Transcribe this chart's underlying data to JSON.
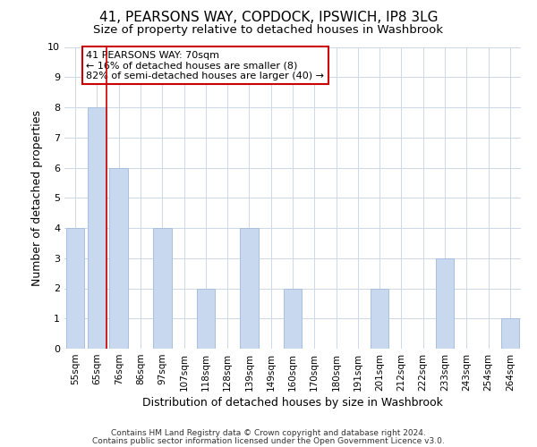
{
  "title": "41, PEARSONS WAY, COPDOCK, IPSWICH, IP8 3LG",
  "subtitle": "Size of property relative to detached houses in Washbrook",
  "xlabel": "Distribution of detached houses by size in Washbrook",
  "ylabel": "Number of detached properties",
  "categories": [
    "55sqm",
    "65sqm",
    "76sqm",
    "86sqm",
    "97sqm",
    "107sqm",
    "118sqm",
    "128sqm",
    "139sqm",
    "149sqm",
    "160sqm",
    "170sqm",
    "180sqm",
    "191sqm",
    "201sqm",
    "212sqm",
    "222sqm",
    "233sqm",
    "243sqm",
    "254sqm",
    "264sqm"
  ],
  "values": [
    4,
    8,
    6,
    0,
    4,
    0,
    2,
    0,
    4,
    0,
    2,
    0,
    0,
    0,
    2,
    0,
    0,
    3,
    0,
    0,
    1
  ],
  "bar_color": "#c8d8ee",
  "bar_edge_color": "#a8c0de",
  "red_line_index": 1,
  "red_line_color": "#cc0000",
  "ylim": [
    0,
    10
  ],
  "yticks": [
    0,
    1,
    2,
    3,
    4,
    5,
    6,
    7,
    8,
    9,
    10
  ],
  "annotation_line1": "41 PEARSONS WAY: 70sqm",
  "annotation_line2": "← 16% of detached houses are smaller (8)",
  "annotation_line3": "82% of semi-detached houses are larger (40) →",
  "annotation_box_color": "#ffffff",
  "annotation_box_edge": "#cc0000",
  "footer_line1": "Contains HM Land Registry data © Crown copyright and database right 2024.",
  "footer_line2": "Contains public sector information licensed under the Open Government Licence v3.0.",
  "background_color": "#ffffff",
  "grid_color": "#ccd8e8",
  "title_fontsize": 11,
  "subtitle_fontsize": 9.5,
  "annotation_fontsize": 8,
  "axis_label_fontsize": 9,
  "tick_fontsize": 7.5,
  "footer_fontsize": 6.5
}
